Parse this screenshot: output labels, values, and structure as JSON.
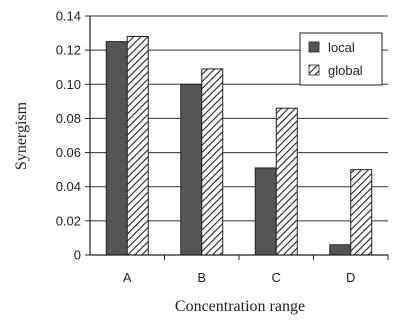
{
  "chart_data": {
    "type": "bar",
    "categories": [
      "A",
      "B",
      "C",
      "D"
    ],
    "series": [
      {
        "name": "local",
        "values": [
          0.125,
          0.1,
          0.051,
          0.006
        ],
        "color": "#555555",
        "pattern": "solid"
      },
      {
        "name": "global",
        "values": [
          0.128,
          0.109,
          0.086,
          0.05
        ],
        "color": "#ffffff",
        "pattern": "diagonal-hatch"
      }
    ],
    "title": "",
    "xlabel": "Concentration range",
    "ylabel": "Synergism",
    "ylim": [
      0,
      0.14
    ],
    "yticks": [
      "0",
      "0.02",
      "0.04",
      "0.06",
      "0.08",
      "0.10",
      "0.12",
      "0.14"
    ],
    "grid": true,
    "legend_position": "top-right"
  }
}
